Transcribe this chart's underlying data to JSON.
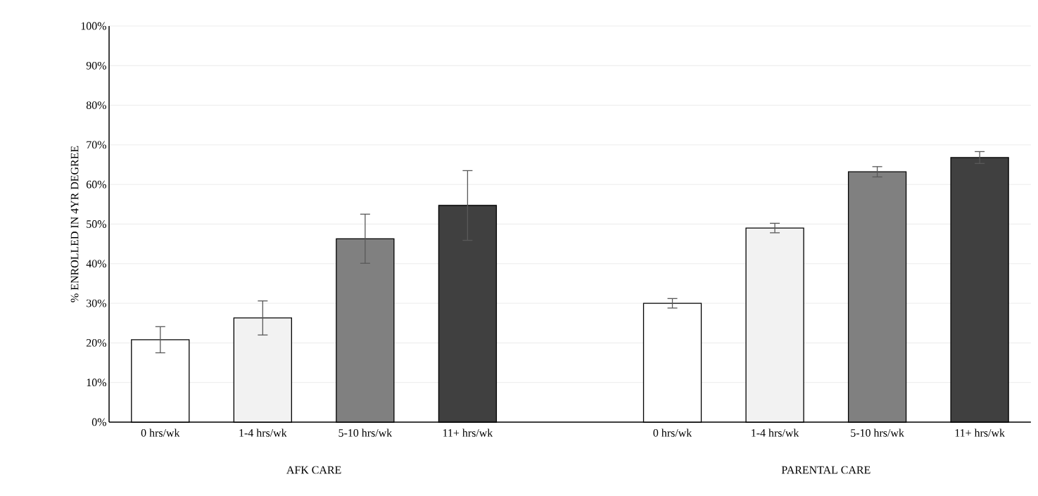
{
  "chart_data": {
    "type": "bar",
    "ylabel": "% ENROLLED IN 4YR DEGREE",
    "categories": [
      "0 hrs/wk",
      "1-4 hrs/wk",
      "5-10 hrs/wk",
      "11+ hrs/wk",
      null,
      "0 hrs/wk",
      "1-4 hrs/wk",
      "5-10 hrs/wk",
      "11+ hrs/wk"
    ],
    "values": [
      20.8,
      26.3,
      46.3,
      54.7,
      null,
      30.0,
      49.0,
      63.2,
      66.8
    ],
    "errors": [
      3.3,
      4.3,
      6.2,
      8.8,
      null,
      1.2,
      1.2,
      1.3,
      1.5
    ],
    "colors": [
      "#ffffff",
      "#f2f2f2",
      "#808080",
      "#404040",
      null,
      "#ffffff",
      "#f2f2f2",
      "#808080",
      "#404040"
    ],
    "ylim": [
      0,
      100
    ],
    "yticks": [
      {
        "value": 0,
        "label": "0%"
      },
      {
        "value": 10,
        "label": "10%"
      },
      {
        "value": 20,
        "label": "20%"
      },
      {
        "value": 30,
        "label": "30%"
      },
      {
        "value": 40,
        "label": "40%"
      },
      {
        "value": 50,
        "label": "50%"
      },
      {
        "value": 60,
        "label": "60%"
      },
      {
        "value": 70,
        "label": "70%"
      },
      {
        "value": 80,
        "label": "80%"
      },
      {
        "value": 90,
        "label": "90%"
      },
      {
        "value": 100,
        "label": "100%"
      }
    ],
    "grid": "y",
    "annotations": [
      "AFK CARE",
      "PARENTAL CARE"
    ]
  }
}
